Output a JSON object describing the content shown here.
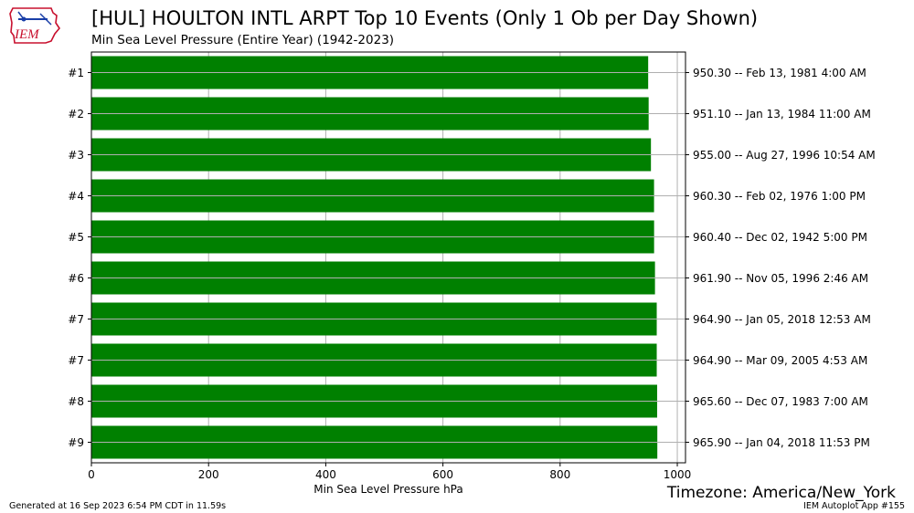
{
  "header": {
    "title": "[HUL] HOULTON INTL ARPT Top 10 Events (Only 1 Ob per Day Shown)",
    "subtitle": "Min Sea Level Pressure  (Entire Year) (1942-2023)"
  },
  "logo": {
    "text": "IEM"
  },
  "footer": {
    "generated": "Generated at 16 Sep 2023 6:54 PM CDT in 11.59s",
    "app": "IEM Autoplot App #155",
    "timezone": "Timezone: America/New_York"
  },
  "colors": {
    "bar": "#008000",
    "grid": "#b0b0b0"
  },
  "chart_data": {
    "type": "bar",
    "orientation": "horizontal",
    "categories": [
      "#1",
      "#2",
      "#3",
      "#4",
      "#5",
      "#6",
      "#7",
      "#7",
      "#8",
      "#9"
    ],
    "values": [
      950.3,
      951.1,
      955.0,
      960.3,
      960.4,
      961.9,
      964.9,
      964.9,
      965.6,
      965.9
    ],
    "bar_labels": [
      "950.30 -- Feb 13, 1981 4:00 AM",
      "951.10 -- Jan 13, 1984 11:00 AM",
      "955.00 -- Aug 27, 1996 10:54 AM",
      "960.30 -- Feb 02, 1976 1:00 PM",
      "960.40 -- Dec 02, 1942 5:00 PM",
      "961.90 -- Nov 05, 1996 2:46 AM",
      "964.90 -- Jan 05, 2018 12:53 AM",
      "964.90 -- Mar 09, 2005 4:53 AM",
      "965.60 -- Dec 07, 1983 7:00 AM",
      "965.90 -- Jan 04, 2018 11:53 PM"
    ],
    "xlabel": "Min Sea Level Pressure hPa",
    "ylabel": "",
    "xlim": [
      0,
      1014
    ],
    "xticks": [
      0,
      200,
      400,
      600,
      800,
      1000
    ],
    "grid": true
  }
}
